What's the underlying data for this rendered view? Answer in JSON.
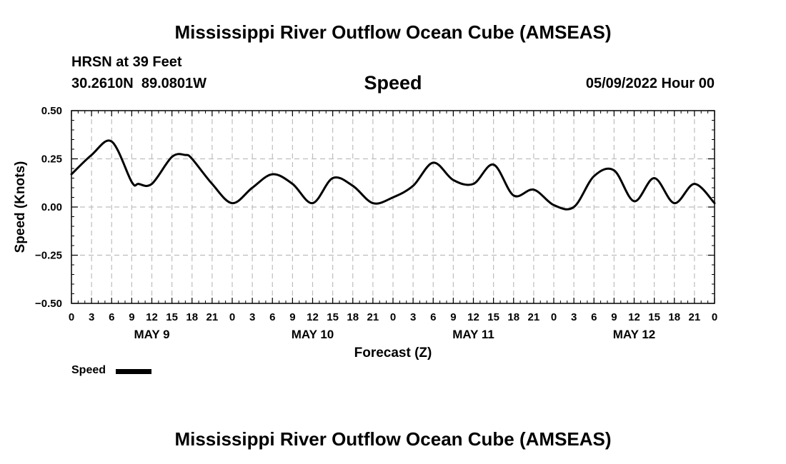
{
  "page": {
    "title": "Mississippi River Outflow Ocean Cube (AMSEAS)",
    "station_line": "HRSN at 39 Feet",
    "coords_line": "30.2610N  89.0801W",
    "plot_title": "Speed",
    "run_time": "05/09/2022 Hour 00",
    "bottom_title": "Mississippi River Outflow Ocean Cube (AMSEAS)"
  },
  "colors": {
    "line": "#000000",
    "grid": "#bdbdbd",
    "axis": "#000000"
  },
  "chart_data": {
    "type": "line",
    "title": "Speed",
    "xlabel": "Forecast (Z)",
    "ylabel": "Speed (Knots)",
    "ylim": [
      -0.5,
      0.5
    ],
    "yticks": [
      -0.5,
      -0.25,
      0.0,
      0.25,
      0.5
    ],
    "ytick_labels": [
      "−0.50",
      "−0.25",
      "0.00",
      "0.25",
      "0.50"
    ],
    "xlim": [
      0,
      96
    ],
    "x_unit": "hours from 05/09/2022 00Z",
    "xticks": [
      0,
      3,
      6,
      9,
      12,
      15,
      18,
      21,
      24,
      27,
      30,
      33,
      36,
      39,
      42,
      45,
      48,
      51,
      54,
      57,
      60,
      63,
      66,
      69,
      72,
      75,
      78,
      81,
      84,
      87,
      90,
      93,
      96
    ],
    "xtick_labels": [
      "0",
      "3",
      "6",
      "9",
      "12",
      "15",
      "18",
      "21",
      "0",
      "3",
      "6",
      "9",
      "12",
      "15",
      "18",
      "21",
      "0",
      "3",
      "6",
      "9",
      "12",
      "15",
      "18",
      "21",
      "0",
      "3",
      "6",
      "9",
      "12",
      "15",
      "18",
      "21",
      "0"
    ],
    "day_labels": [
      {
        "label": "MAY 9",
        "x": 12
      },
      {
        "label": "MAY 10",
        "x": 36
      },
      {
        "label": "MAY 11",
        "x": 60
      },
      {
        "label": "MAY 12",
        "x": 84
      }
    ],
    "grid": true,
    "legend": "bottom-left",
    "series": [
      {
        "name": "Speed",
        "x": [
          0,
          3,
          6,
          9,
          10,
          12,
          15,
          17,
          18,
          21,
          24,
          27,
          30,
          33,
          36,
          39,
          42,
          45,
          48,
          51,
          54,
          57,
          60,
          63,
          66,
          69,
          72,
          75,
          78,
          81,
          84,
          87,
          90,
          93,
          96
        ],
        "values": [
          0.17,
          0.27,
          0.34,
          0.13,
          0.12,
          0.12,
          0.26,
          0.27,
          0.25,
          0.12,
          0.02,
          0.1,
          0.17,
          0.12,
          0.02,
          0.15,
          0.11,
          0.02,
          0.05,
          0.11,
          0.23,
          0.14,
          0.12,
          0.22,
          0.06,
          0.09,
          0.01,
          0.0,
          0.16,
          0.19,
          0.03,
          0.15,
          0.02,
          0.12,
          0.02
        ]
      }
    ]
  }
}
